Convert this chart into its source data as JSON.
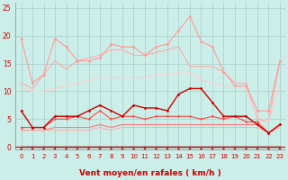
{
  "xlabel": "Vent moyen/en rafales ( km/h )",
  "bg_color": "#cceee8",
  "grid_color": "#aacccc",
  "xlim": [
    -0.5,
    23.5
  ],
  "ylim": [
    -0.5,
    26
  ],
  "yticks": [
    0,
    5,
    10,
    15,
    20,
    25
  ],
  "xticks": [
    0,
    1,
    2,
    3,
    4,
    5,
    6,
    7,
    8,
    9,
    10,
    11,
    12,
    13,
    14,
    15,
    16,
    17,
    18,
    19,
    20,
    21,
    22,
    23
  ],
  "xtick_labels": [
    "0",
    "1",
    "2",
    "3",
    "4",
    "5",
    "6",
    "7",
    "8",
    "9",
    "10",
    "11",
    "12",
    "13",
    "14",
    "15",
    "16",
    "17",
    "18",
    "19",
    "20",
    "21",
    "22",
    "23"
  ],
  "series": [
    {
      "y": [
        19.5,
        11.5,
        13.0,
        19.5,
        18.0,
        15.5,
        15.5,
        16.0,
        18.5,
        18.0,
        18.0,
        16.5,
        18.0,
        18.5,
        21.0,
        23.5,
        19.0,
        18.0,
        13.5,
        11.0,
        11.0,
        6.5,
        6.5,
        15.5
      ],
      "color": "#ff9999",
      "lw": 0.8,
      "marker": "D",
      "ms": 1.5,
      "zorder": 3
    },
    {
      "y": [
        11.5,
        10.5,
        13.0,
        15.5,
        14.0,
        15.5,
        16.0,
        16.5,
        17.5,
        17.5,
        16.5,
        16.5,
        17.0,
        17.5,
        18.0,
        14.5,
        14.5,
        14.5,
        13.5,
        11.5,
        11.5,
        5.0,
        4.5,
        15.5
      ],
      "color": "#ffaaaa",
      "lw": 0.8,
      "marker": null,
      "ms": 0,
      "zorder": 2
    },
    {
      "y": [
        10.5,
        10.0,
        10.0,
        10.5,
        11.0,
        11.5,
        12.0,
        12.5,
        12.5,
        12.5,
        12.5,
        12.5,
        13.0,
        13.0,
        13.5,
        13.5,
        12.0,
        11.5,
        11.0,
        11.0,
        10.5,
        5.5,
        4.5,
        11.0
      ],
      "color": "#ffcccc",
      "lw": 0.8,
      "marker": null,
      "ms": 0,
      "zorder": 2
    },
    {
      "y": [
        6.5,
        3.5,
        3.5,
        5.5,
        5.5,
        5.5,
        6.5,
        7.5,
        6.5,
        5.5,
        7.5,
        7.0,
        7.0,
        6.5,
        9.5,
        10.5,
        10.5,
        8.0,
        5.5,
        5.5,
        5.5,
        4.0,
        2.5,
        4.0
      ],
      "color": "#cc0000",
      "lw": 1.0,
      "marker": "D",
      "ms": 1.5,
      "zorder": 4
    },
    {
      "y": [
        3.5,
        3.5,
        3.5,
        5.0,
        5.0,
        5.5,
        5.0,
        6.5,
        5.0,
        5.5,
        5.5,
        5.0,
        5.5,
        5.5,
        5.5,
        5.5,
        5.0,
        5.5,
        5.0,
        5.5,
        4.5,
        4.5,
        2.5,
        4.0
      ],
      "color": "#ff4444",
      "lw": 0.8,
      "marker": "D",
      "ms": 1.2,
      "zorder": 3
    },
    {
      "y": [
        3.0,
        3.0,
        3.0,
        3.5,
        3.5,
        3.5,
        3.5,
        4.0,
        3.5,
        4.0,
        4.0,
        4.0,
        4.0,
        4.0,
        4.0,
        4.0,
        4.0,
        4.0,
        4.0,
        4.0,
        4.0,
        4.0,
        2.5,
        4.0
      ],
      "color": "#ff7777",
      "lw": 0.8,
      "marker": null,
      "ms": 0,
      "zorder": 2
    },
    {
      "y": [
        3.0,
        3.0,
        3.0,
        3.0,
        3.0,
        3.0,
        3.0,
        3.5,
        3.0,
        3.5,
        3.5,
        3.5,
        3.5,
        3.5,
        3.5,
        3.5,
        3.5,
        3.5,
        3.5,
        3.5,
        3.5,
        3.5,
        2.5,
        3.5
      ],
      "color": "#ffaaaa",
      "lw": 0.7,
      "marker": null,
      "ms": 0,
      "zorder": 2
    },
    {
      "y": [
        0.0,
        0.0,
        0.0,
        0.0,
        0.0,
        0.0,
        0.0,
        0.0,
        0.0,
        0.0,
        0.0,
        0.0,
        0.0,
        0.0,
        0.0,
        0.0,
        0.0,
        0.0,
        0.0,
        0.0,
        0.0,
        0.0,
        0.0,
        0.0
      ],
      "color": "#330000",
      "lw": 1.0,
      "marker": null,
      "ms": 0,
      "zorder": 2
    }
  ],
  "arrow_color": "#cc0000",
  "tick_color": "#cc0000",
  "label_color": "#cc0000",
  "xlabel_fontsize": 6.5,
  "tick_fontsize": 5.0
}
